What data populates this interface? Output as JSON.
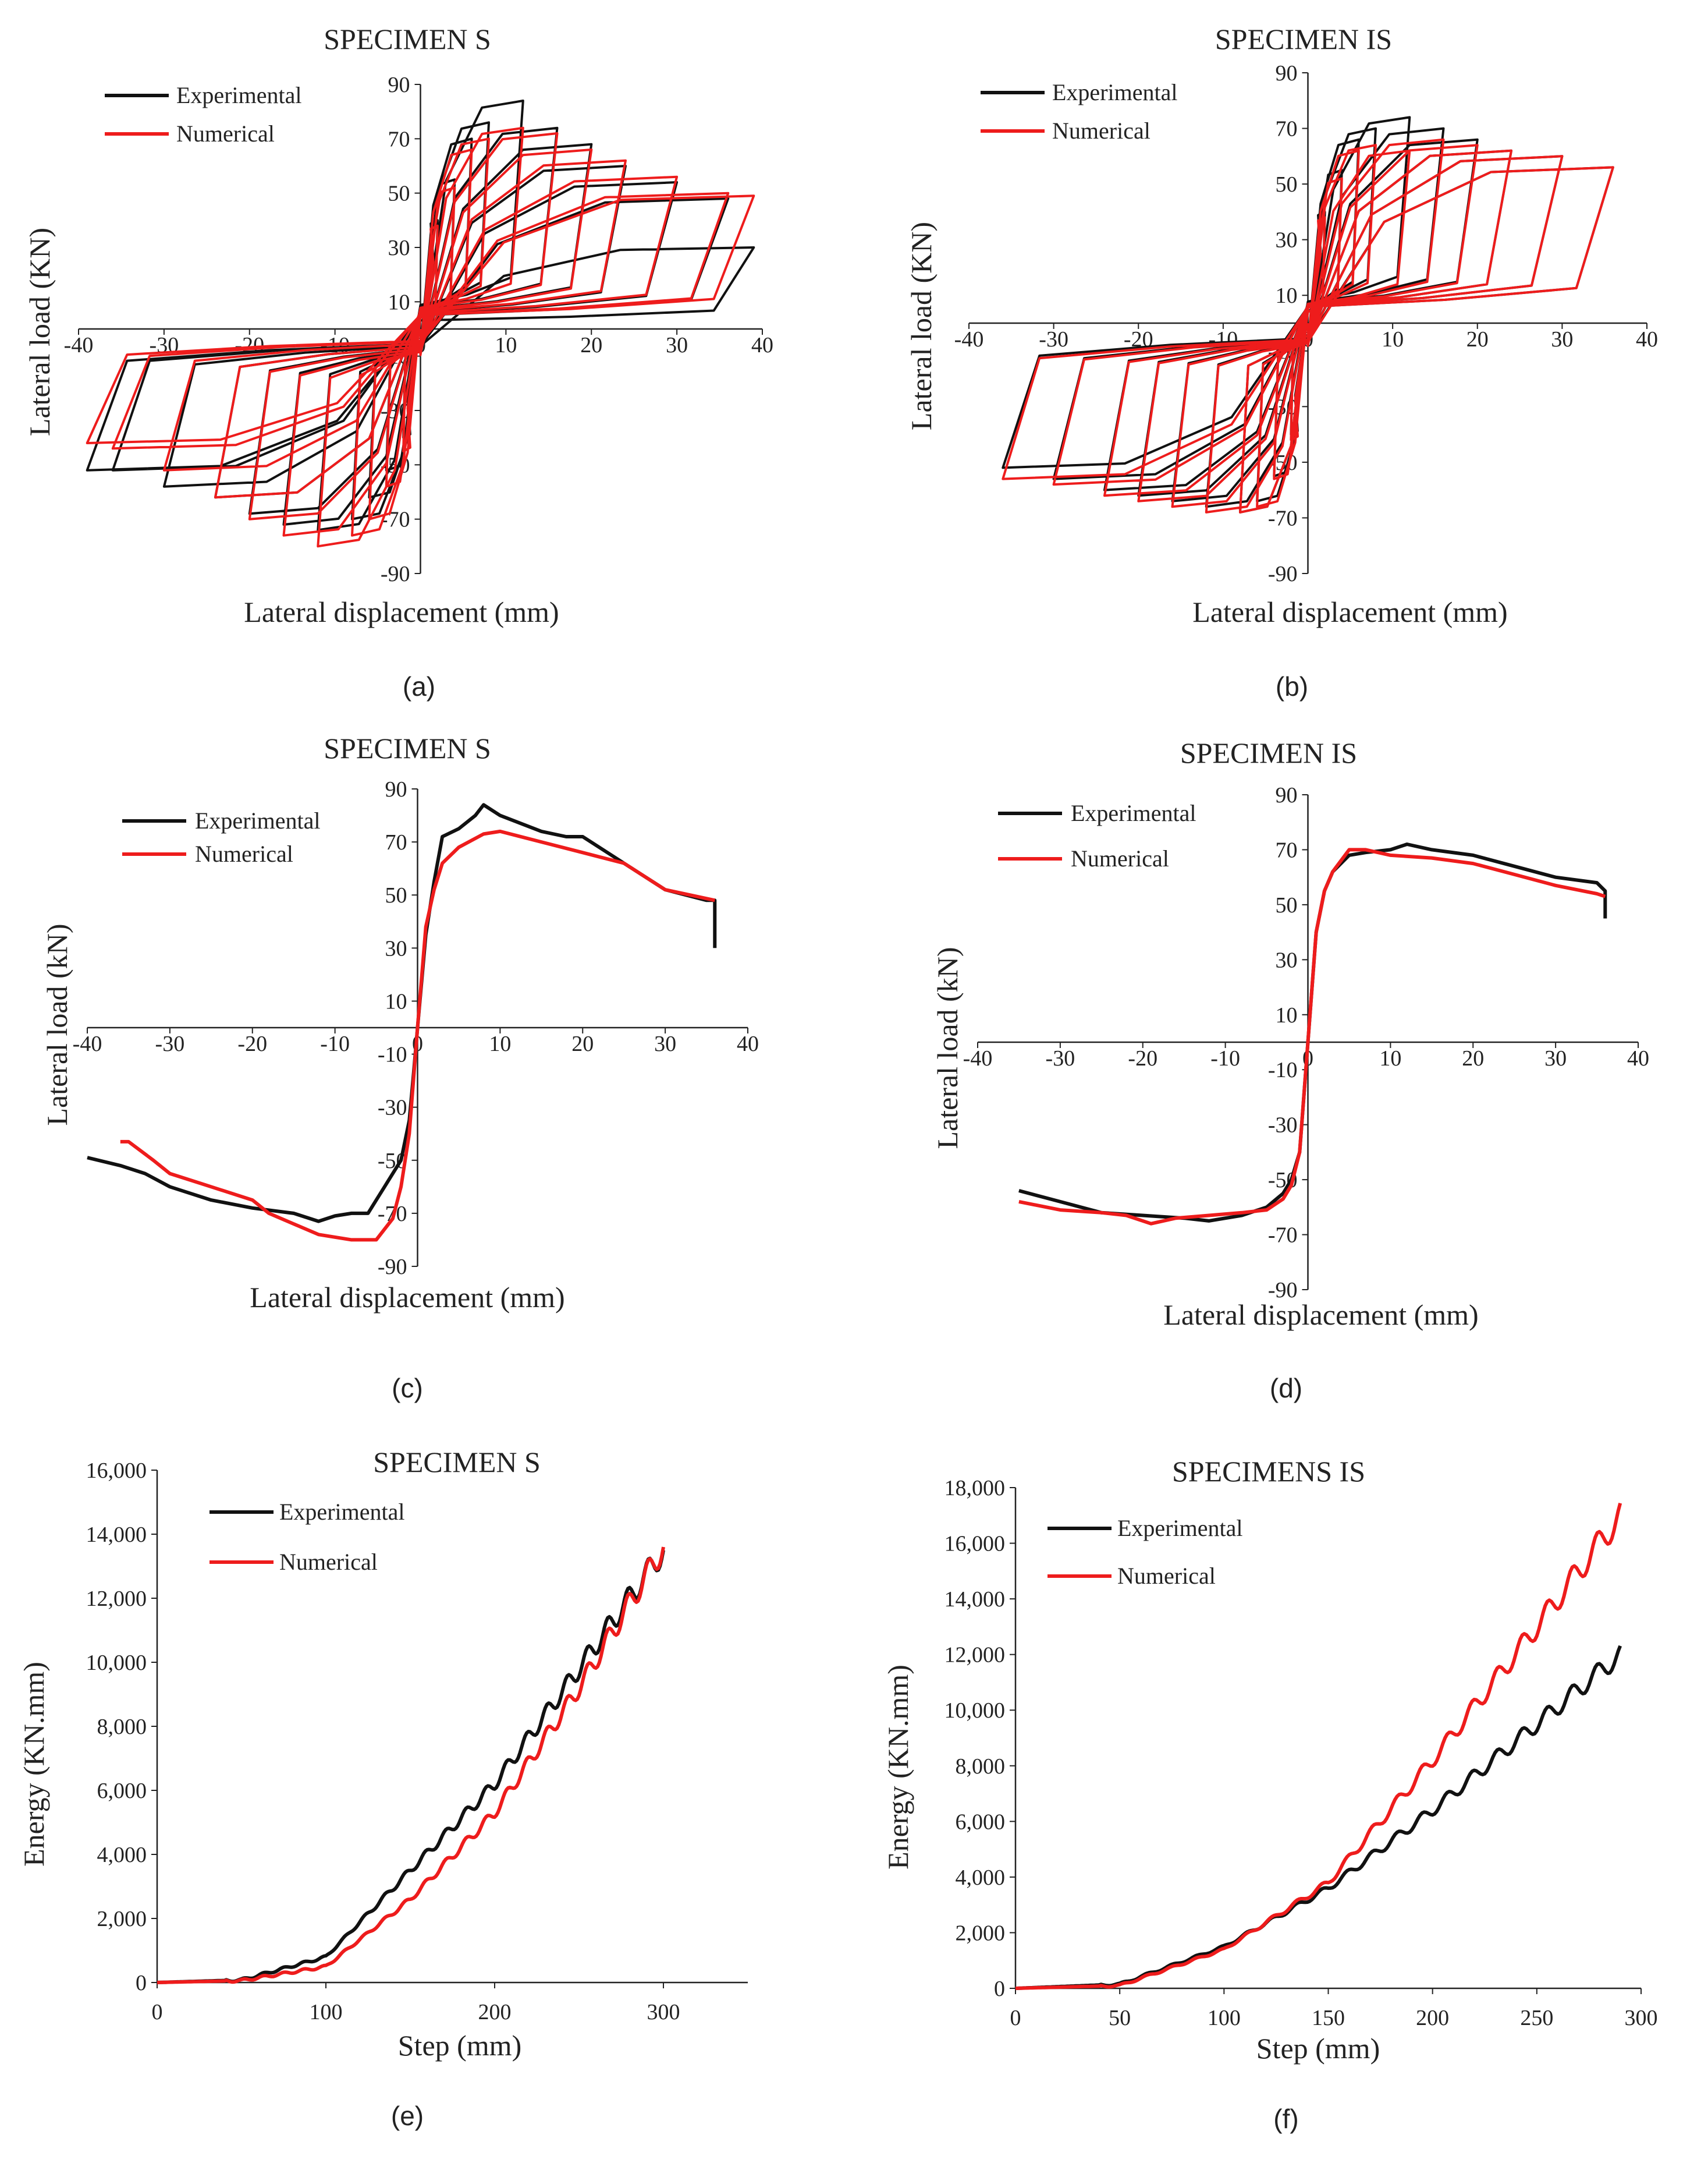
{
  "colors": {
    "experimental": "#111111",
    "numerical": "#ee1c1c",
    "axis": "#222222"
  },
  "chart_data": [
    {
      "id": "a",
      "caption": "(a)",
      "type": "line",
      "title": "SPECIMEN S",
      "xlabel": "Lateral displacement (mm)",
      "ylabel": "Lateral load (KN)",
      "xlim": [
        -40,
        40
      ],
      "ylim": [
        -90,
        90
      ],
      "xticks": [
        -40,
        -30,
        -20,
        -10,
        0,
        10,
        20,
        30,
        40
      ],
      "yticks": [
        -90,
        -70,
        -50,
        -30,
        -10,
        10,
        30,
        50,
        70,
        90
      ],
      "legend": [
        "Experimental",
        "Numerical"
      ],
      "series": [
        {
          "name": "Experimental",
          "kind": "hysteresis",
          "amplitudes": [
            2,
            4,
            6,
            8,
            12,
            16,
            20,
            24,
            30,
            36,
            39
          ],
          "posPeaks": [
            40,
            55,
            70,
            76,
            84,
            74,
            68,
            60,
            54,
            48,
            30
          ],
          "negPeaks": [
            -40,
            -52,
            -62,
            -70,
            -74,
            -72,
            -68,
            -62,
            -58,
            -52,
            -52
          ]
        },
        {
          "name": "Numerical",
          "kind": "hysteresis",
          "amplitudes": [
            2,
            4,
            6,
            8,
            12,
            16,
            20,
            24,
            30,
            36,
            39
          ],
          "posPeaks": [
            38,
            52,
            66,
            70,
            74,
            72,
            66,
            62,
            56,
            50,
            49
          ],
          "negPeaks": [
            -45,
            -58,
            -70,
            -76,
            -80,
            -76,
            -70,
            -62,
            -52,
            -44,
            -42
          ]
        }
      ]
    },
    {
      "id": "b",
      "caption": "(b)",
      "type": "line",
      "title": "SPECIMEN IS",
      "xlabel": "Lateral displacement (mm)",
      "ylabel": "Lateral load (KN)",
      "xlim": [
        -40,
        40
      ],
      "ylim": [
        -90,
        90
      ],
      "xticks": [
        -40,
        -30,
        -20,
        -10,
        0,
        10,
        20,
        30,
        40
      ],
      "yticks": [
        -90,
        -70,
        -50,
        -30,
        -10,
        10,
        30,
        50,
        70,
        90
      ],
      "legend": [
        "Experimental",
        "Numerical"
      ],
      "series": [
        {
          "name": "Experimental",
          "kind": "hysteresis",
          "amplitudes": [
            2,
            4,
            6,
            8,
            12,
            16,
            20,
            24,
            30,
            36
          ],
          "posPeaks": [
            40,
            55,
            66,
            70,
            74,
            70,
            66,
            62,
            60,
            56
          ],
          "negPeaks": [
            -40,
            -55,
            -64,
            -68,
            -66,
            -64,
            -62,
            -60,
            -56,
            -52
          ]
        },
        {
          "name": "Numerical",
          "kind": "hysteresis",
          "amplitudes": [
            2,
            4,
            6,
            8,
            12,
            16,
            20,
            24,
            30,
            36
          ],
          "posPeaks": [
            38,
            52,
            62,
            64,
            62,
            66,
            64,
            62,
            60,
            56
          ],
          "negPeaks": [
            -42,
            -56,
            -66,
            -68,
            -68,
            -66,
            -64,
            -62,
            -58,
            -56
          ]
        }
      ]
    },
    {
      "id": "c",
      "caption": "(c)",
      "type": "line",
      "title": "SPECIMEN S",
      "xlabel": "Lateral displacement (mm)",
      "ylabel": "Lateral load (kN)",
      "xlim": [
        -40,
        40
      ],
      "ylim": [
        -90,
        90
      ],
      "xticks": [
        -40,
        -30,
        -20,
        -10,
        0,
        10,
        20,
        30,
        40
      ],
      "yticks": [
        -90,
        -70,
        -50,
        -30,
        -10,
        10,
        30,
        50,
        70,
        90
      ],
      "legend": [
        "Experimental",
        "Numerical"
      ],
      "series": [
        {
          "name": "Experimental",
          "x": [
            36,
            36,
            35,
            30,
            25,
            20,
            18,
            15,
            10,
            8,
            7,
            5,
            3,
            2,
            1,
            0,
            -0.5,
            -1,
            -2,
            -3,
            -4,
            -5,
            -6,
            -8,
            -10,
            -12,
            -15,
            -20,
            -25,
            -30,
            -33,
            -36,
            -40
          ],
          "y": [
            30,
            48,
            48,
            52,
            62,
            72,
            72,
            74,
            80,
            84,
            80,
            75,
            72,
            55,
            35,
            0,
            -18,
            -35,
            -50,
            -55,
            -60,
            -65,
            -70,
            -70,
            -71,
            -73,
            -70,
            -68,
            -65,
            -60,
            -55,
            -52,
            -49
          ]
        },
        {
          "name": "Numerical",
          "x": [
            36,
            30,
            25,
            20,
            15,
            10,
            8,
            5,
            3,
            2,
            1,
            0,
            -0.5,
            -1,
            -2,
            -3,
            -5,
            -8,
            -12,
            -15,
            -18,
            -20,
            -25,
            -30,
            -32,
            -35,
            -36
          ],
          "y": [
            48,
            52,
            62,
            66,
            70,
            74,
            73,
            68,
            62,
            52,
            38,
            0,
            -20,
            -40,
            -60,
            -72,
            -80,
            -80,
            -78,
            -74,
            -70,
            -65,
            -60,
            -55,
            -50,
            -43,
            -43
          ]
        }
      ]
    },
    {
      "id": "d",
      "caption": "(d)",
      "type": "line",
      "title": "SPECIMEN IS",
      "xlabel": "Lateral displacement (mm)",
      "ylabel": "Lateral load (kN)",
      "xlim": [
        -40,
        40
      ],
      "ylim": [
        -90,
        90
      ],
      "xticks": [
        -40,
        -30,
        -20,
        -10,
        0,
        10,
        20,
        30,
        40
      ],
      "yticks": [
        -90,
        -70,
        -50,
        -30,
        -10,
        10,
        30,
        50,
        70,
        90
      ],
      "legend": [
        "Experimental",
        "Numerical"
      ],
      "series": [
        {
          "name": "Experimental",
          "x": [
            36,
            36,
            35,
            30,
            25,
            20,
            15,
            12,
            10,
            7,
            5,
            3,
            2,
            1,
            0,
            -0.5,
            -1,
            -2,
            -3,
            -5,
            -8,
            -12,
            -15,
            -20,
            -25,
            -30,
            -35
          ],
          "y": [
            45,
            55,
            58,
            60,
            64,
            68,
            70,
            72,
            70,
            69,
            68,
            62,
            55,
            40,
            0,
            -20,
            -40,
            -50,
            -55,
            -60,
            -63,
            -65,
            -64,
            -63,
            -62,
            -58,
            -54
          ]
        },
        {
          "name": "Numerical",
          "x": [
            36,
            35,
            30,
            25,
            20,
            15,
            10,
            7,
            5,
            3,
            2,
            1,
            0,
            -0.5,
            -1,
            -2,
            -3,
            -5,
            -8,
            -12,
            -16,
            -19,
            -22,
            -25,
            -30,
            -35
          ],
          "y": [
            53,
            54,
            57,
            61,
            65,
            67,
            68,
            70,
            70,
            62,
            55,
            40,
            0,
            -20,
            -40,
            -52,
            -57,
            -61,
            -62,
            -63,
            -64,
            -66,
            -63,
            -62,
            -61,
            -58
          ]
        }
      ]
    },
    {
      "id": "e",
      "caption": "(e)",
      "type": "line",
      "title": "SPECIMEN S",
      "xlabel": "Step (mm)",
      "ylabel": "Energy (KN.mm)",
      "xlim": [
        0,
        350
      ],
      "ylim": [
        0,
        16000
      ],
      "xticks": [
        0,
        100,
        200,
        300
      ],
      "yticks": [
        0,
        2000,
        4000,
        6000,
        8000,
        10000,
        12000,
        14000,
        16000
      ],
      "yticklabels": [
        "0",
        "2,000",
        "4,000",
        "6,000",
        "8,000",
        "10,000",
        "12,000",
        "14,000",
        "16,000"
      ],
      "legend": [
        "Experimental",
        "Numerical"
      ],
      "series": [
        {
          "name": "Experimental",
          "x": [
            0,
            50,
            100,
            150,
            200,
            250,
            300
          ],
          "y": [
            0,
            80,
            800,
            3500,
            6200,
            9800,
            13500
          ]
        },
        {
          "name": "Numerical",
          "x": [
            0,
            50,
            100,
            150,
            200,
            250,
            300
          ],
          "y": [
            0,
            60,
            500,
            2600,
            5300,
            9200,
            13600
          ]
        }
      ]
    },
    {
      "id": "f",
      "caption": "(f)",
      "type": "line",
      "title": "SPECIMENS IS",
      "xlabel": "Step (mm)",
      "ylabel": "Energy (KN.mm)",
      "xlim": [
        0,
        300
      ],
      "ylim": [
        0,
        18000
      ],
      "xticks": [
        0,
        50,
        100,
        150,
        200,
        250,
        300
      ],
      "yticks": [
        0,
        2000,
        4000,
        6000,
        8000,
        10000,
        12000,
        14000,
        16000,
        18000
      ],
      "yticklabels": [
        "0",
        "2,000",
        "4,000",
        "6,000",
        "8,000",
        "10,000",
        "12,000",
        "14,000",
        "16,000",
        "18,000"
      ],
      "legend": [
        "Experimental",
        "Numerical"
      ],
      "series": [
        {
          "name": "Experimental",
          "x": [
            0,
            50,
            100,
            150,
            200,
            250,
            290
          ],
          "y": [
            0,
            150,
            1500,
            3600,
            6400,
            9500,
            12000
          ]
        },
        {
          "name": "Numerical",
          "x": [
            0,
            50,
            100,
            150,
            200,
            250,
            290
          ],
          "y": [
            0,
            100,
            1400,
            3800,
            8200,
            13000,
            17000
          ]
        }
      ]
    }
  ]
}
